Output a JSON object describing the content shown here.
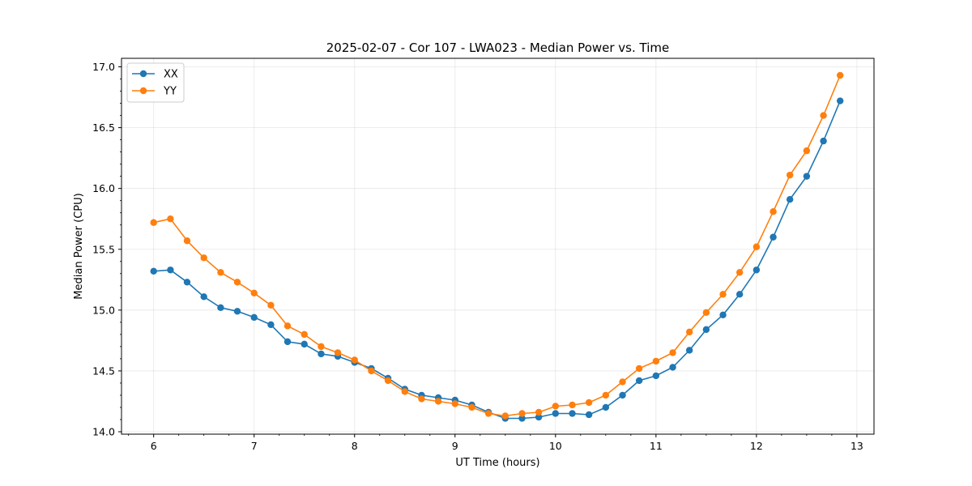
{
  "chart_data": {
    "type": "line",
    "title": "2025-02-07 - Cor 107 - LWA023 - Median Power vs. Time",
    "xlabel": "UT Time (hours)",
    "ylabel": "Median Power (CPU)",
    "xlim": [
      5.68,
      13.17
    ],
    "ylim": [
      13.98,
      17.07
    ],
    "xticks": [
      6,
      7,
      8,
      9,
      10,
      11,
      12,
      13
    ],
    "yticks": [
      14.0,
      14.5,
      15.0,
      15.5,
      16.0,
      16.5,
      17.0
    ],
    "xtick_labels": [
      "6",
      "7",
      "8",
      "9",
      "10",
      "11",
      "12",
      "13"
    ],
    "ytick_labels": [
      "14.0",
      "14.5",
      "15.0",
      "15.5",
      "16.0",
      "16.5",
      "17.0"
    ],
    "grid": true,
    "legend_position": "upper left",
    "x": [
      6.0,
      6.167,
      6.333,
      6.5,
      6.667,
      6.833,
      7.0,
      7.167,
      7.333,
      7.5,
      7.667,
      7.833,
      8.0,
      8.167,
      8.333,
      8.5,
      8.667,
      8.833,
      9.0,
      9.167,
      9.333,
      9.5,
      9.667,
      9.833,
      10.0,
      10.167,
      10.333,
      10.5,
      10.667,
      10.833,
      11.0,
      11.167,
      11.333,
      11.5,
      11.667,
      11.833,
      12.0,
      12.167,
      12.333,
      12.5,
      12.667,
      12.833
    ],
    "series": [
      {
        "name": "XX",
        "color": "#1f77b4",
        "values": [
          15.32,
          15.33,
          15.23,
          15.11,
          15.02,
          14.99,
          14.94,
          14.88,
          14.74,
          14.72,
          14.64,
          14.62,
          14.57,
          14.52,
          14.44,
          14.35,
          14.3,
          14.28,
          14.26,
          14.22,
          14.16,
          14.11,
          14.11,
          14.12,
          14.15,
          14.15,
          14.14,
          14.2,
          14.3,
          14.42,
          14.46,
          14.53,
          14.67,
          14.84,
          14.96,
          15.13,
          15.33,
          15.6,
          15.91,
          16.1,
          16.39,
          16.72
        ]
      },
      {
        "name": "YY",
        "color": "#ff7f0e",
        "values": [
          15.72,
          15.75,
          15.57,
          15.43,
          15.31,
          15.23,
          15.14,
          15.04,
          14.87,
          14.8,
          14.7,
          14.65,
          14.59,
          14.5,
          14.42,
          14.33,
          14.27,
          14.25,
          14.23,
          14.2,
          14.15,
          14.13,
          14.15,
          14.16,
          14.21,
          14.22,
          14.24,
          14.3,
          14.41,
          14.52,
          14.58,
          14.65,
          14.82,
          14.98,
          15.13,
          15.31,
          15.52,
          15.81,
          16.11,
          16.31,
          16.6,
          16.93
        ]
      }
    ]
  }
}
